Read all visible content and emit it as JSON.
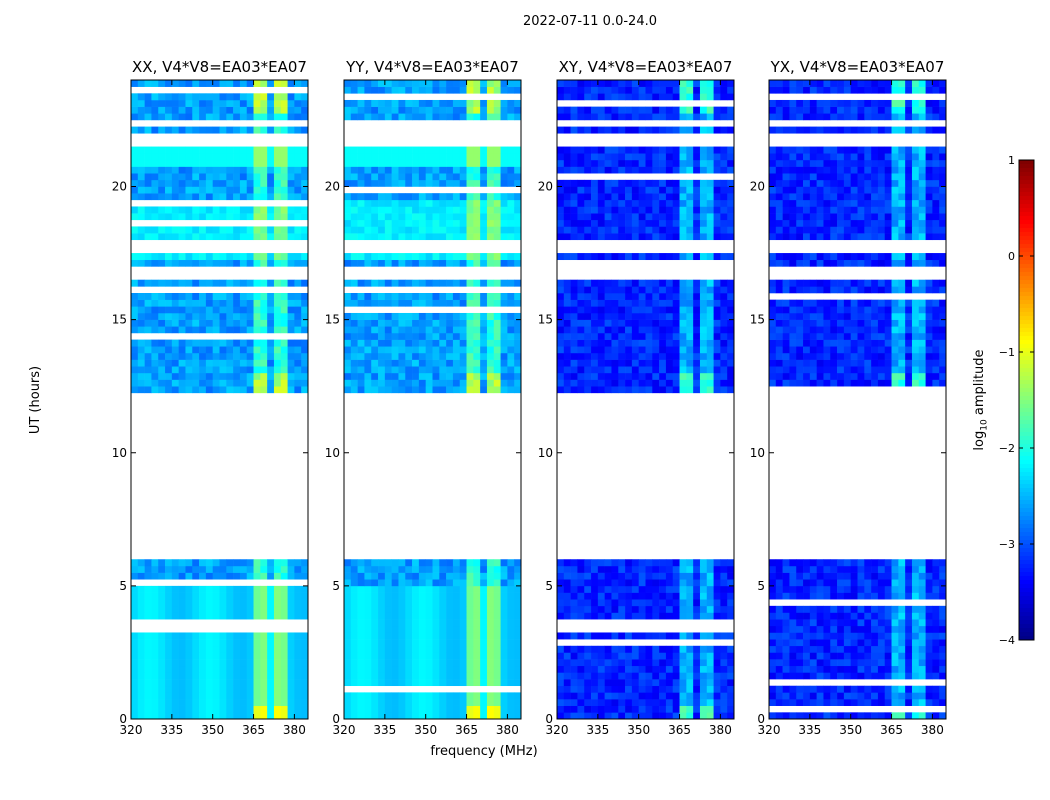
{
  "figure": {
    "suptitle": "2022-07-11 0.0-24.0",
    "xlabel": "frequency (MHz)",
    "ylabel": "UT (hours)"
  },
  "chart_data": {
    "type": "heatmap",
    "x_unit": "MHz",
    "y_unit": "hours",
    "xlim": [
      320,
      385
    ],
    "ylim": [
      0,
      24
    ],
    "xticks": [
      320,
      335,
      350,
      365,
      380
    ],
    "yticks": [
      0,
      5,
      10,
      15,
      20
    ],
    "panels": [
      {
        "title": "XX, V4*V8=EA03*EA07",
        "pol": "XX",
        "base_level": -2.6
      },
      {
        "title": "YY, V4*V8=EA03*EA07",
        "pol": "YY",
        "base_level": -2.6
      },
      {
        "title": "XY, V4*V8=EA03*EA07",
        "pol": "XY",
        "base_level": -3.2
      },
      {
        "title": "YX, V4*V8=EA03*EA07",
        "pol": "YX",
        "base_level": -3.2
      }
    ],
    "data_gaps_hours": [
      [
        6.0,
        12.2
      ],
      [
        16.5,
        16.9
      ],
      [
        17.6,
        17.9
      ],
      [
        21.5,
        21.9
      ],
      [
        22.3,
        22.5
      ]
    ],
    "rfi_band_mhz": [
      362,
      381
    ],
    "colorbar": {
      "label": "log10 amplitude",
      "label_base": "log",
      "label_sub": "10",
      "label_rest": " amplitude",
      "range": [
        -4,
        1
      ],
      "ticks": [
        1,
        0,
        -1,
        -2,
        -3,
        -4
      ],
      "colormap": "jet"
    }
  }
}
